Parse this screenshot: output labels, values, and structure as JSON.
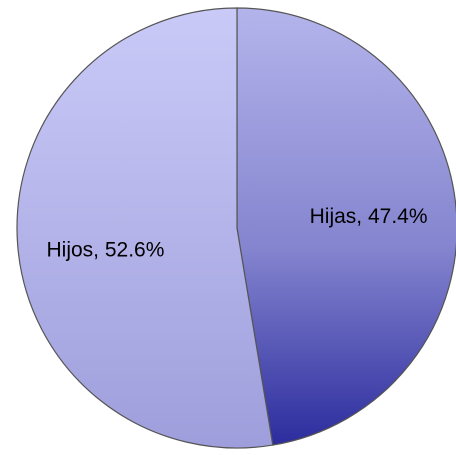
{
  "chart_data": {
    "type": "pie",
    "categories": [
      "Hijas",
      "Hijos"
    ],
    "values": [
      47.4,
      52.6
    ],
    "value_labels": [
      "Hijas, 47.4%",
      "Hijos, 52.6%"
    ],
    "colors": [
      "#2c2c9e",
      "#9e9edc"
    ],
    "start_angle": 0,
    "direction": "clockwise"
  }
}
